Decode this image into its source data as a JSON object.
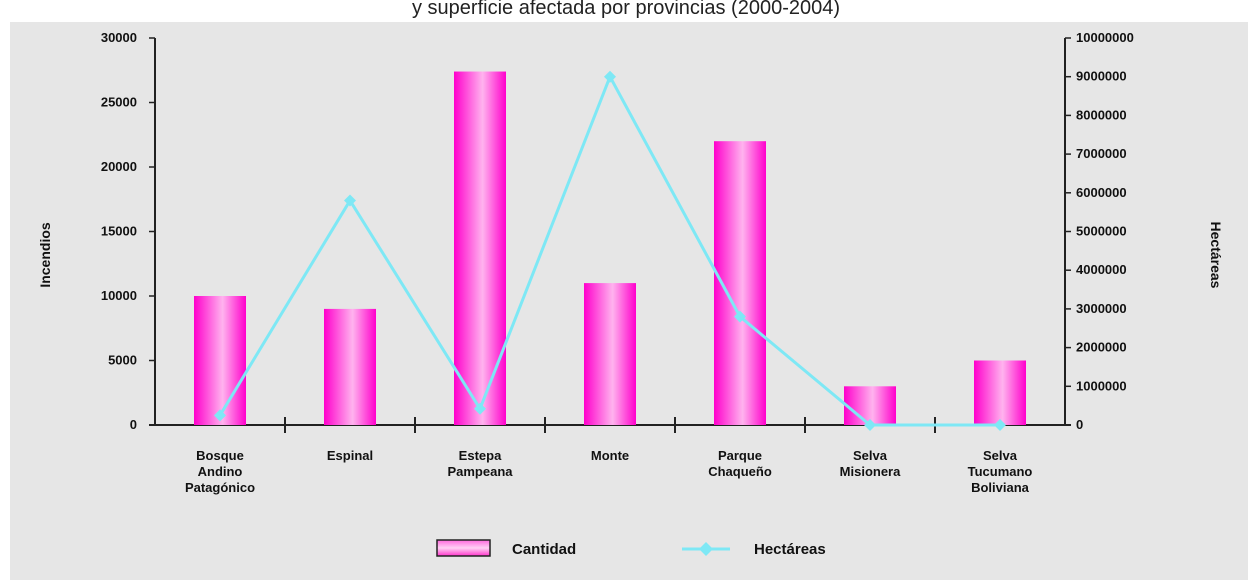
{
  "chart_data": {
    "type": "bar",
    "title": "y superficie afectada por provincias (2000-2004)",
    "categories": [
      [
        "Bosque",
        "Andino",
        "Patagónico"
      ],
      [
        "Espinal"
      ],
      [
        "Estepa",
        "Pampeana"
      ],
      [
        "Monte"
      ],
      [
        "Parque",
        "Chaqueño"
      ],
      [
        "Selva",
        "Misionera"
      ],
      [
        "Selva",
        "Tucumano",
        "Boliviana"
      ]
    ],
    "ylabel_left": "Incendios",
    "ylabel_right": "Hectáreas",
    "ylim_left": [
      0,
      30000
    ],
    "ylim_right": [
      0,
      10000000
    ],
    "left_ticks": [
      0,
      5000,
      10000,
      15000,
      20000,
      25000,
      30000
    ],
    "right_ticks": [
      0,
      1000000,
      2000000,
      3000000,
      4000000,
      5000000,
      6000000,
      7000000,
      8000000,
      9000000,
      10000000
    ],
    "series": [
      {
        "name": "Cantidad",
        "type": "bar",
        "axis": "left",
        "color": "#ff33cc",
        "values": [
          10000,
          9000,
          27400,
          11000,
          22000,
          3000,
          5000
        ]
      },
      {
        "name": "Hectáreas",
        "type": "line",
        "axis": "right",
        "color": "#7ee8f5",
        "values": [
          250000,
          5800000,
          420000,
          9000000,
          2800000,
          0,
          0
        ]
      }
    ],
    "legend_position": "bottom-center",
    "grid": false
  }
}
